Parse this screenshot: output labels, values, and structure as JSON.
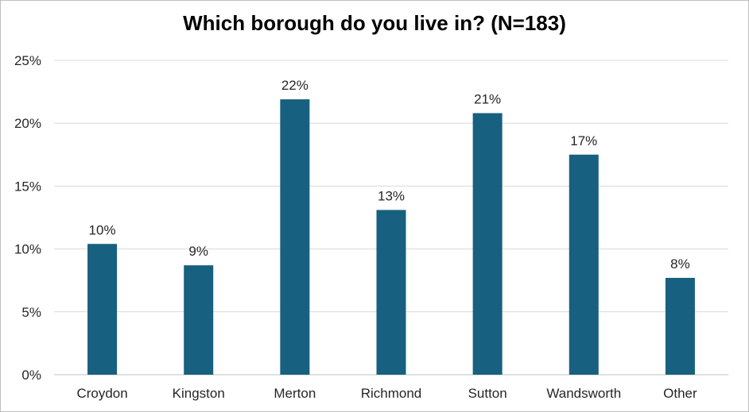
{
  "chart_data": {
    "type": "bar",
    "title": "Which borough do you live in? (N=183)",
    "xlabel": "",
    "ylabel": "",
    "categories": [
      "Croydon",
      "Kingston",
      "Merton",
      "Richmond",
      "Sutton",
      "Wandsworth",
      "Other"
    ],
    "values": [
      10.4,
      8.7,
      21.9,
      13.1,
      20.8,
      17.5,
      7.7
    ],
    "data_labels": [
      "10%",
      "9%",
      "22%",
      "13%",
      "21%",
      "17%",
      "8%"
    ],
    "ylim": [
      0,
      25
    ],
    "yticks": [
      0,
      5,
      10,
      15,
      20,
      25
    ],
    "ytick_labels": [
      "0%",
      "5%",
      "10%",
      "15%",
      "20%",
      "25%"
    ],
    "grid": true,
    "legend": "none",
    "bar_color": "#17607f"
  }
}
